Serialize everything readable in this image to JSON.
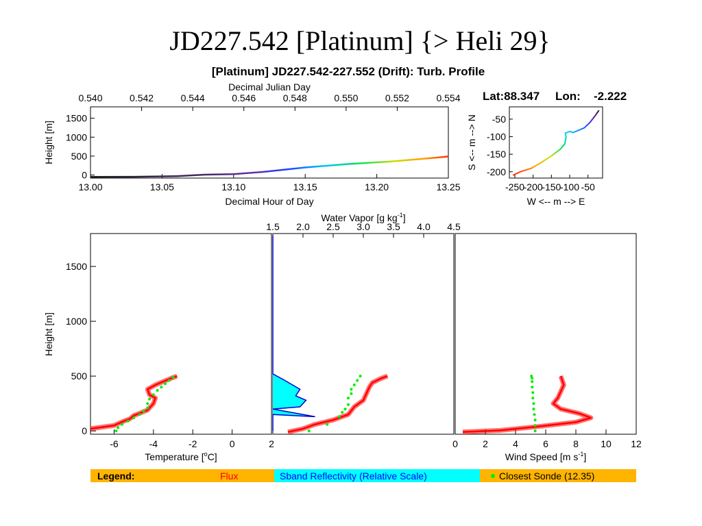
{
  "slide_title": "JD227.542 [Platinum] {> Heli 29}",
  "figure_title": "[Platinum] JD227.542-227.552 (Drift): Turb. Profile",
  "location": {
    "lat_label": "Lat:88.347",
    "lon_label": "Lon:",
    "lon_value": "-2.222"
  },
  "legend": {
    "label": "Legend:",
    "items": [
      {
        "text": "Flux",
        "color": "#ff0000"
      },
      {
        "text": "Sband Reflectivity (Relative Scale)",
        "color": "#0000ff"
      },
      {
        "text": "Closest Sonde (12.35)",
        "color": "#000000",
        "marker_color": "#00ee00"
      }
    ],
    "band_color": "#ffb400",
    "cyan_box": "#00ffff"
  },
  "colors": {
    "flux": "#ff0000",
    "sonde": "#00ee00",
    "reflectivity_fill": "#00ffff",
    "reflectivity_line": "#0000cc"
  },
  "chart_data": [
    {
      "id": "time_series",
      "type": "line",
      "xlabel": "Decimal Hour of Day",
      "xlabel_top": "Decimal Julian Day",
      "ylabel": "Height [m]",
      "xlim": [
        13.0,
        13.25
      ],
      "ylim": [
        -80,
        1800
      ],
      "x_ticks": [
        "13.00",
        "13.05",
        "13.10",
        "13.15",
        "13.20",
        "13.25"
      ],
      "x_top_ticks": [
        "0.540",
        "0.542",
        "0.544",
        "0.546",
        "0.548",
        "0.550",
        "0.552",
        "0.554"
      ],
      "y_ticks": [
        "0",
        "500",
        "1000",
        "1500"
      ],
      "x": [
        13.0,
        13.03,
        13.06,
        13.08,
        13.1,
        13.12,
        13.15,
        13.18,
        13.21,
        13.23,
        13.25
      ],
      "y": [
        -50,
        -45,
        -30,
        10,
        25,
        80,
        200,
        290,
        360,
        420,
        490
      ],
      "color_scale": "rainbow"
    },
    {
      "id": "track",
      "type": "line",
      "xlabel": "W <-- m --> E",
      "ylabel": "S <-- m --> N",
      "xlim": [
        -265,
        -10
      ],
      "ylim": [
        -218,
        -15
      ],
      "x_ticks": [
        "-250",
        "-200",
        "-150",
        "-100",
        "-50"
      ],
      "y_ticks": [
        "-50",
        "-100",
        "-150",
        "-200"
      ],
      "x": [
        -255,
        -235,
        -205,
        -180,
        -150,
        -125,
        -113,
        -110,
        -112,
        -100,
        -90,
        -60,
        -45,
        -30,
        -20
      ],
      "y": [
        -210,
        -200,
        -190,
        -175,
        -155,
        -135,
        -120,
        -100,
        -90,
        -85,
        -88,
        -75,
        -60,
        -40,
        -25
      ],
      "color_scale": "rainbow"
    },
    {
      "id": "temperature",
      "type": "line",
      "xlabel": "Temperature [°C]",
      "ylabel": "Height [m]",
      "xlim": [
        -7.2,
        2
      ],
      "ylim": [
        -30,
        1800
      ],
      "x_ticks": [
        "-6",
        "-4",
        "-2",
        "0",
        "2"
      ],
      "y_ticks": [
        "0",
        "500",
        "1000",
        "1500"
      ],
      "series": [
        {
          "name": "Flux",
          "x": [
            -7.2,
            -6.0,
            -5.5,
            -5.2,
            -5.0,
            -4.3,
            -4.0,
            -3.9,
            -4.2,
            -4.3,
            -3.9,
            -3.5,
            -3.1,
            -2.8
          ],
          "y": [
            20,
            50,
            90,
            110,
            140,
            190,
            250,
            300,
            330,
            380,
            420,
            450,
            480,
            500
          ]
        },
        {
          "name": "Closest Sonde",
          "x": [
            -5.9,
            -5.8,
            -5.6,
            -5.3,
            -5.0,
            -4.7,
            -4.5,
            -4.3,
            -4.3,
            -4.2,
            -4.0,
            -3.8,
            -3.6,
            -3.4,
            -3.2,
            -3.0
          ],
          "y": [
            0,
            30,
            60,
            90,
            120,
            150,
            180,
            210,
            250,
            290,
            330,
            370,
            400,
            430,
            460,
            490
          ]
        }
      ]
    },
    {
      "id": "water_vapor",
      "type": "line",
      "xlabel": "Water Vapor [g kg-1]",
      "xlim": [
        1.5,
        4.5
      ],
      "ylim": [
        -30,
        1800
      ],
      "x_top_ticks": [
        "1.5",
        "2.0",
        "2.5",
        "3.0",
        "3.5",
        "4.0",
        "4.5"
      ],
      "series": [
        {
          "name": "Flux",
          "x": [
            1.75,
            2.0,
            2.2,
            2.5,
            2.75,
            2.85,
            3.0,
            3.05,
            3.1,
            3.15,
            3.3,
            3.4
          ],
          "y": [
            -10,
            20,
            60,
            100,
            150,
            220,
            280,
            340,
            400,
            440,
            480,
            500
          ]
        },
        {
          "name": "Closest Sonde",
          "x": [
            2.1,
            2.4,
            2.6,
            2.65,
            2.7,
            2.75,
            2.75,
            2.8,
            2.8,
            2.85,
            2.9,
            2.95
          ],
          "y": [
            0,
            60,
            130,
            170,
            200,
            240,
            300,
            340,
            380,
            420,
            460,
            500
          ]
        },
        {
          "name": "Sband Reflectivity (Relative Scale)",
          "x": [
            1.5,
            1.5,
            1.7,
            1.95,
            1.88,
            2.05,
            1.95,
            1.5,
            2.2,
            1.5,
            1.5
          ],
          "y": [
            1780,
            520,
            460,
            380,
            320,
            280,
            220,
            200,
            130,
            150,
            0
          ]
        }
      ]
    },
    {
      "id": "wind_speed",
      "type": "line",
      "xlabel": "Wind Speed [m s-1]",
      "xlim": [
        0,
        12
      ],
      "ylim": [
        -30,
        1800
      ],
      "x_ticks": [
        "0",
        "2",
        "4",
        "6",
        "8",
        "10",
        "12"
      ],
      "series": [
        {
          "name": "Flux",
          "x": [
            0.5,
            3.0,
            5.5,
            8.0,
            9.0,
            8.2,
            7.0,
            6.5,
            6.8,
            7.0,
            7.2,
            7.0
          ],
          "y": [
            -10,
            5,
            40,
            80,
            120,
            160,
            200,
            250,
            300,
            360,
            420,
            500
          ]
        },
        {
          "name": "Closest Sonde",
          "x": [
            5.3,
            5.3,
            5.3,
            5.25,
            5.2,
            5.2,
            5.15,
            5.15,
            5.1,
            5.1,
            5.1,
            5.05
          ],
          "y": [
            0,
            50,
            100,
            150,
            200,
            250,
            300,
            350,
            400,
            450,
            480,
            500
          ]
        }
      ]
    }
  ]
}
